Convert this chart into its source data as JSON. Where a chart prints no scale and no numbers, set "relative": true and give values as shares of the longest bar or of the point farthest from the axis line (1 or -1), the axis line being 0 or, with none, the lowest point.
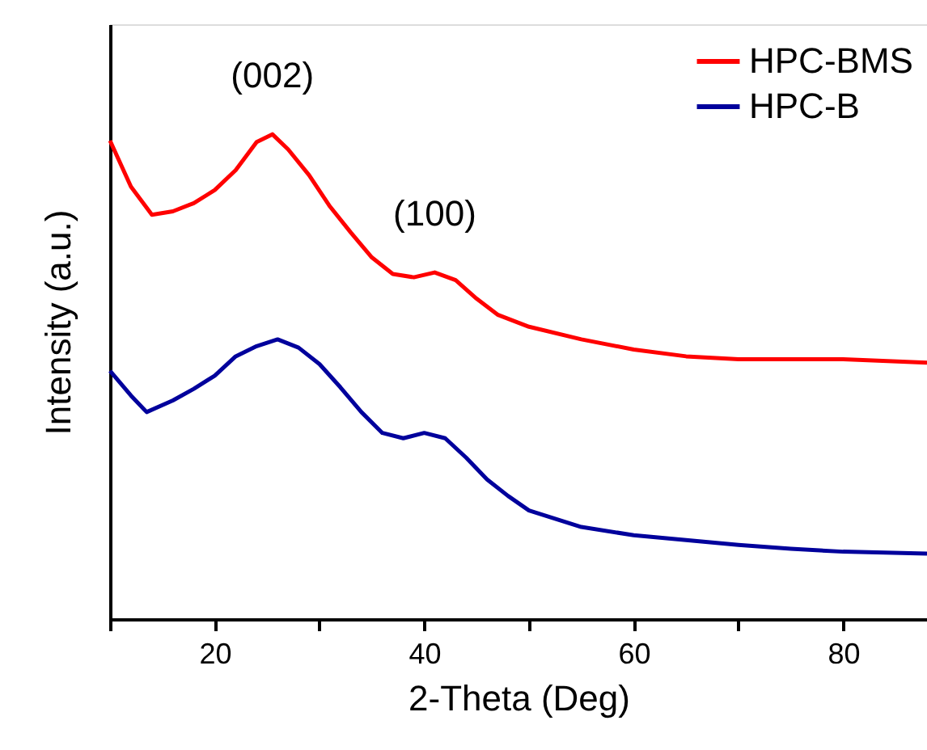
{
  "chart_data": {
    "type": "line",
    "xlabel": "2-Theta (Deg)",
    "ylabel": "Intensity (a.u.)",
    "relative": true,
    "xlim": [
      10,
      88
    ],
    "xticks": [
      {
        "value": 10,
        "label": null
      },
      20,
      {
        "value": 30,
        "label": null
      },
      40,
      {
        "value": 50,
        "label": null
      },
      60,
      {
        "value": 70,
        "label": null
      },
      80
    ],
    "legend": "top right",
    "grid": false,
    "x": [
      10,
      12,
      14,
      16,
      18,
      20,
      22,
      24,
      25.5,
      27,
      29,
      31,
      33,
      35,
      37,
      39,
      41,
      43,
      45,
      47,
      50,
      55,
      60,
      65,
      70,
      75,
      80,
      88
    ],
    "series": [
      {
        "name": "HPC-BMS",
        "color": "#ff0000",
        "values": [
          0.987,
          0.892,
          0.834,
          0.841,
          0.858,
          0.885,
          0.926,
          0.984,
          1,
          0.969,
          0.916,
          0.851,
          0.797,
          0.746,
          0.712,
          0.705,
          0.715,
          0.699,
          0.661,
          0.628,
          0.603,
          0.577,
          0.556,
          0.542,
          0.536,
          0.536,
          0.536,
          0.529
        ]
      },
      {
        "name": "HPC-B",
        "color": "#00009c",
        "x": [
          10,
          12,
          13.5,
          16,
          18,
          20,
          22,
          24,
          26,
          28,
          30,
          32,
          34,
          36,
          38,
          40,
          42,
          44,
          46,
          48,
          50,
          55,
          60,
          65,
          70,
          75,
          80,
          88
        ],
        "values": [
          0.512,
          0.461,
          0.427,
          0.451,
          0.475,
          0.502,
          0.542,
          0.563,
          0.577,
          0.56,
          0.526,
          0.478,
          0.427,
          0.384,
          0.373,
          0.384,
          0.373,
          0.333,
          0.288,
          0.254,
          0.224,
          0.19,
          0.173,
          0.163,
          0.153,
          0.145,
          0.139,
          0.135
        ]
      }
    ],
    "annotations": [
      {
        "text": "(002)",
        "x": 25.5,
        "y": 1
      },
      {
        "text": "(100)",
        "x": 41,
        "y": 0.715
      }
    ]
  }
}
